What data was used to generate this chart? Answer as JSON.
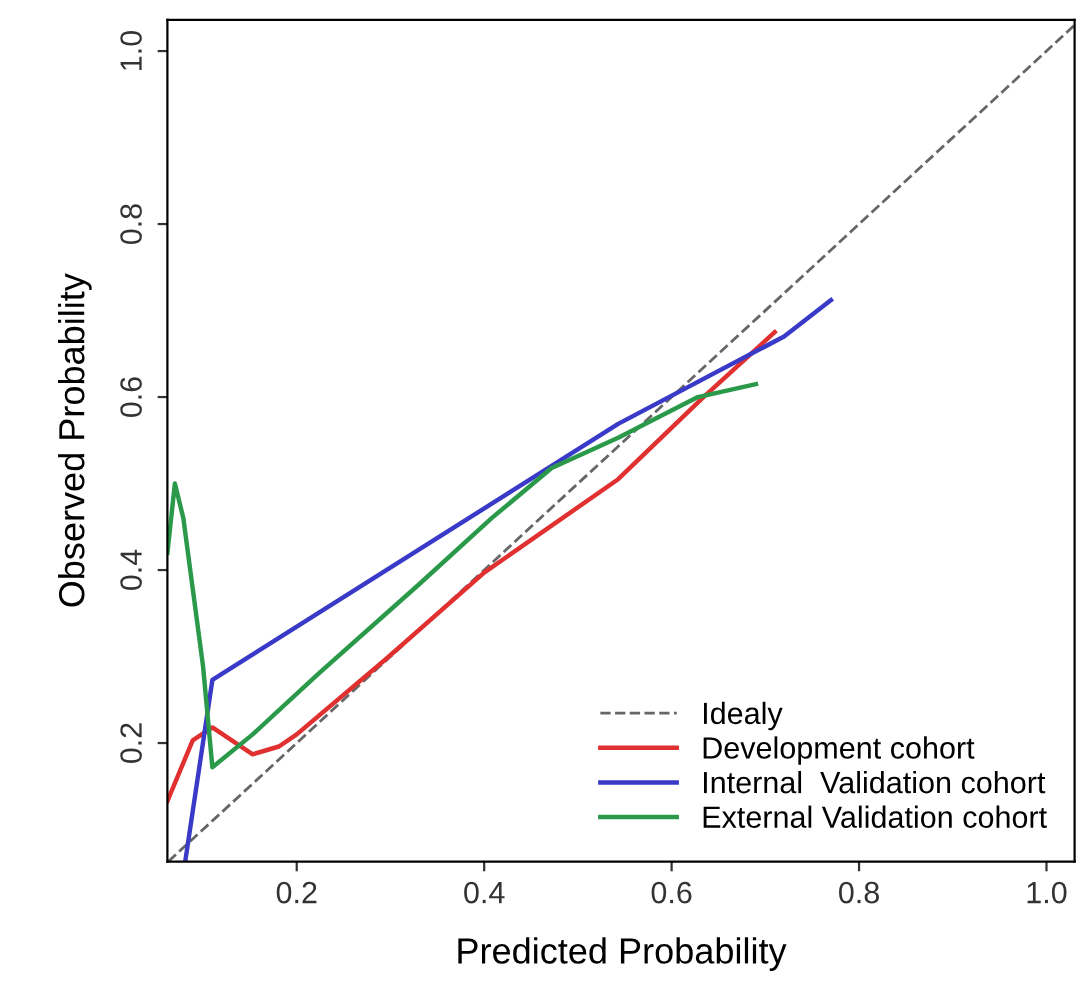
{
  "chart_data": {
    "type": "line",
    "xlabel": "Predicted Probability",
    "ylabel": "Observed Probability",
    "xlim": [
      0.062,
      1.03
    ],
    "ylim": [
      0.063,
      1.036
    ],
    "xticks": [
      0.2,
      0.4,
      0.6,
      0.8,
      {
        "value": 1,
        "label": "1.0"
      }
    ],
    "yticks": [
      0.2,
      0.4,
      0.6,
      0.8,
      {
        "value": 1,
        "label": "1.0"
      }
    ],
    "grid": false,
    "legend": "bottom right",
    "marker": "none",
    "series": [
      {
        "name": "Idealy",
        "color": "#666666",
        "line_style": "dashed",
        "x": [
          0.063,
          1.03
        ],
        "values": [
          0.063,
          1.03
        ]
      },
      {
        "name": "Development cohort",
        "color": "#e03030",
        "x": [
          0.062,
          0.089,
          0.11,
          0.153,
          0.181,
          0.2,
          0.294,
          0.4,
          0.543,
          0.634,
          0.71
        ],
        "values": [
          0.133,
          0.203,
          0.218,
          0.187,
          0.196,
          0.21,
          0.296,
          0.397,
          0.505,
          0.6,
          0.675
        ]
      },
      {
        "name": "Internal  Validation cohort",
        "color": "#3a3ac8",
        "x": [
          0.081,
          0.11,
          0.543,
          0.72,
          0.77
        ],
        "values": [
          0.063,
          0.273,
          0.569,
          0.67,
          0.712
        ]
      },
      {
        "name": "External Validation cohort",
        "color": "#2a9a4a",
        "x": [
          0.062,
          0.07,
          0.079,
          0.1,
          0.11,
          0.153,
          0.223,
          0.33,
          0.408,
          0.472,
          0.543,
          0.628,
          0.69
        ],
        "values": [
          0.42,
          0.5,
          0.46,
          0.289,
          0.172,
          0.21,
          0.28,
          0.383,
          0.46,
          0.518,
          0.553,
          0.6,
          0.615
        ]
      }
    ]
  }
}
